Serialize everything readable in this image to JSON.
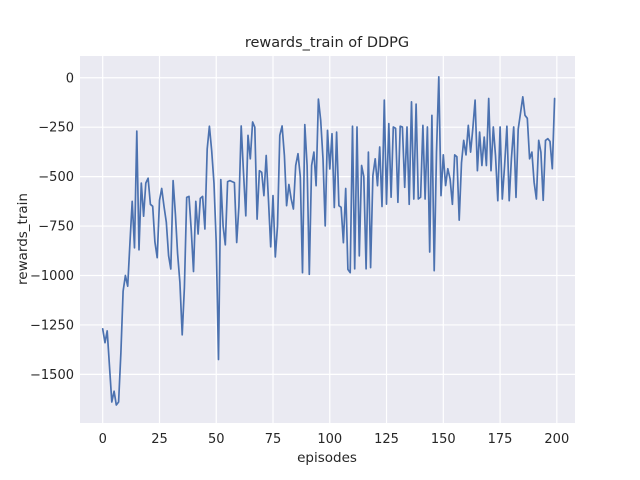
{
  "chart_data": {
    "type": "line",
    "title": "rewards_train of DDPG",
    "xlabel": "episodes",
    "ylabel": "rewards_train",
    "grid": true,
    "legend_position": "none",
    "xlim": [
      -10,
      208
    ],
    "ylim": [
      -1746,
      110
    ],
    "x_ticks": [
      {
        "value": 0,
        "label": "0"
      },
      {
        "value": 25,
        "label": "25"
      },
      {
        "value": 50,
        "label": "50"
      },
      {
        "value": 75,
        "label": "75"
      },
      {
        "value": 100,
        "label": "100"
      },
      {
        "value": 125,
        "label": "125"
      },
      {
        "value": 150,
        "label": "150"
      },
      {
        "value": 175,
        "label": "175"
      },
      {
        "value": 200,
        "label": "200"
      }
    ],
    "y_ticks": [
      {
        "value": 0,
        "label": "0"
      },
      {
        "value": -250,
        "label": "−250"
      },
      {
        "value": -500,
        "label": "−500"
      },
      {
        "value": -750,
        "label": "−750"
      },
      {
        "value": -1000,
        "label": "−1000"
      },
      {
        "value": -1250,
        "label": "−1250"
      },
      {
        "value": -1500,
        "label": "−1500"
      }
    ],
    "colors": {
      "line": "#4c72b0",
      "plot_background": "#eaeaf2",
      "gridline": "#ffffff",
      "figure_background": "#ffffff",
      "text": "#262626"
    },
    "series": [
      {
        "name": "rewards_train",
        "x_start": 0,
        "x_step": 1,
        "values": [
          -1270,
          -1340,
          -1280,
          -1460,
          -1640,
          -1585,
          -1655,
          -1640,
          -1390,
          -1080,
          -1000,
          -1054,
          -830,
          -625,
          -860,
          -270,
          -870,
          -533,
          -700,
          -533,
          -508,
          -640,
          -650,
          -830,
          -910,
          -620,
          -560,
          -650,
          -730,
          -900,
          -967,
          -520,
          -690,
          -890,
          -1035,
          -1300,
          -1060,
          -605,
          -600,
          -775,
          -980,
          -625,
          -790,
          -610,
          -600,
          -765,
          -360,
          -245,
          -370,
          -535,
          -830,
          -1425,
          -515,
          -750,
          -845,
          -525,
          -520,
          -525,
          -530,
          -833,
          -650,
          -244,
          -480,
          -698,
          -291,
          -410,
          -224,
          -250,
          -715,
          -470,
          -478,
          -596,
          -393,
          -622,
          -855,
          -596,
          -906,
          -750,
          -291,
          -244,
          -393,
          -647,
          -540,
          -613,
          -664,
          -444,
          -384,
          -500,
          -986,
          -237,
          -444,
          -994,
          -444,
          -376,
          -546,
          -108,
          -215,
          -410,
          -749,
          -266,
          -461,
          -283,
          -656,
          -275,
          -647,
          -655,
          -834,
          -560,
          -969,
          -986,
          -245,
          -966,
          -249,
          -901,
          -444,
          -500,
          -966,
          -376,
          -960,
          -494,
          -410,
          -546,
          -350,
          -651,
          -113,
          -639,
          -232,
          -604,
          -249,
          -256,
          -630,
          -245,
          -249,
          -554,
          -249,
          -640,
          -122,
          -613,
          -133,
          -613,
          -604,
          -241,
          -613,
          -249,
          -881,
          -190,
          -976,
          -376,
          5,
          -596,
          -390,
          -545,
          -460,
          -512,
          -640,
          -390,
          -400,
          -720,
          -430,
          -317,
          -390,
          -241,
          -376,
          -258,
          -113,
          -470,
          -275,
          -444,
          -300,
          -444,
          -105,
          -470,
          -249,
          -393,
          -622,
          -249,
          -613,
          -444,
          -245,
          -622,
          -410,
          -249,
          -605,
          -260,
          -179,
          -97,
          -190,
          -205,
          -410,
          -376,
          -528,
          -613,
          -317,
          -376,
          -620,
          -317,
          -308,
          -322,
          -460,
          -105
        ]
      }
    ]
  }
}
